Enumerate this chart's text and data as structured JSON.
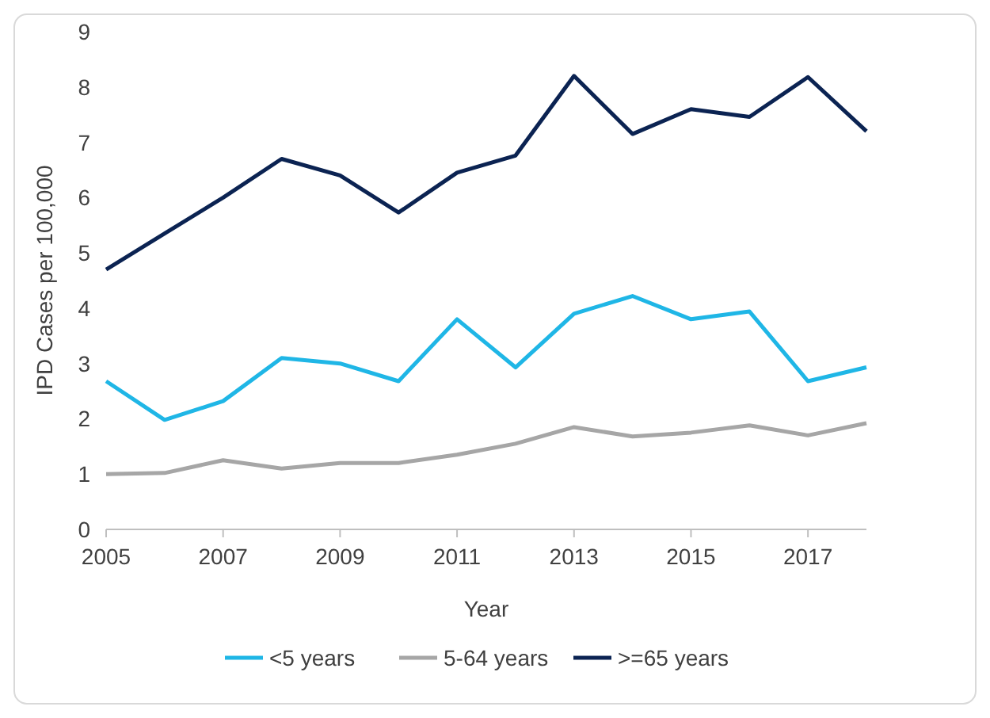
{
  "chart_data": {
    "type": "line",
    "xlabel": "Year",
    "ylabel": "IPD Cases per 100,000",
    "x": [
      2005,
      2006,
      2007,
      2008,
      2009,
      2010,
      2011,
      2012,
      2013,
      2014,
      2015,
      2016,
      2017,
      2018
    ],
    "xlim": [
      2005,
      2018
    ],
    "xticks": [
      2005,
      2007,
      2009,
      2011,
      2013,
      2015,
      2017
    ],
    "ylim": [
      0,
      9
    ],
    "yticks": [
      0,
      1,
      2,
      3,
      4,
      5,
      6,
      7,
      8,
      9
    ],
    "series": [
      {
        "name": "<5 years",
        "color": "#1fb6e6",
        "values": [
          2.68,
          1.98,
          2.32,
          3.1,
          3.0,
          2.68,
          3.8,
          2.93,
          3.9,
          4.22,
          3.8,
          3.94,
          2.68,
          2.93
        ]
      },
      {
        "name": "5-64 years",
        "color": "#a6a6a6",
        "values": [
          1.0,
          1.02,
          1.25,
          1.1,
          1.2,
          1.2,
          1.35,
          1.55,
          1.85,
          1.68,
          1.75,
          1.88,
          1.7,
          1.92
        ]
      },
      {
        "name": ">=65 years",
        "color": "#0b2352",
        "values": [
          4.7,
          5.35,
          6.0,
          6.7,
          6.4,
          5.73,
          6.45,
          6.76,
          8.2,
          7.15,
          7.6,
          7.46,
          8.18,
          7.2
        ]
      }
    ],
    "grid": false,
    "legend": "bottom",
    "marker": "none",
    "line_style": "solid"
  }
}
